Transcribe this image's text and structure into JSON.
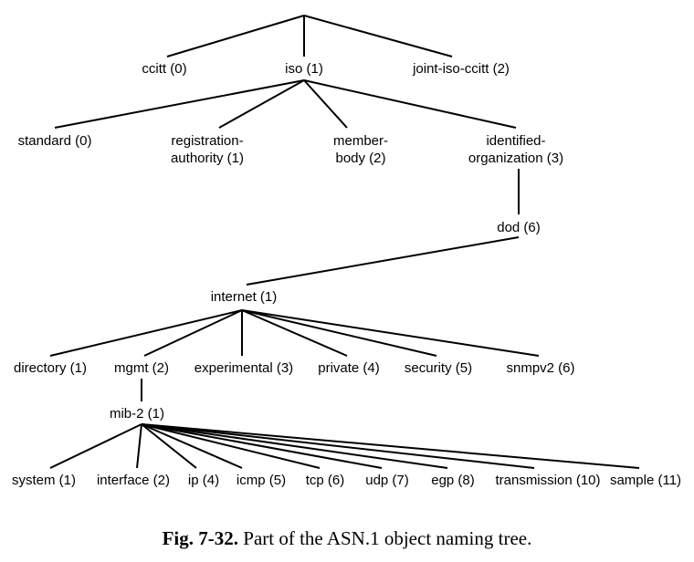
{
  "nodes": {
    "ccitt": "ccitt (0)",
    "iso": "iso (1)",
    "joint": "joint-iso-ccitt (2)",
    "standard": "standard (0)",
    "reg_1": "registration-",
    "reg_2": "authority (1)",
    "mem_1": "member-",
    "mem_2": "body (2)",
    "ident_1": "identified-",
    "ident_2": "organization (3)",
    "dod": "dod (6)",
    "internet": "internet (1)",
    "directory": "directory (1)",
    "mgmt": "mgmt (2)",
    "experimental": "experimental (3)",
    "private": "private (4)",
    "security": "security (5)",
    "snmpv2": "snmpv2 (6)",
    "mib2": "mib-2 (1)",
    "system": "system (1)",
    "interface": "interface (2)",
    "ip": "ip (4)",
    "icmp": "icmp (5)",
    "tcp": "tcp (6)",
    "udp": "udp (7)",
    "egp": "egp (8)",
    "transmission": "transmission (10)",
    "sample": "sample (11)"
  },
  "caption": {
    "label": "Fig. 7-32.",
    "text": "Part of the ASN.1 object naming tree."
  }
}
